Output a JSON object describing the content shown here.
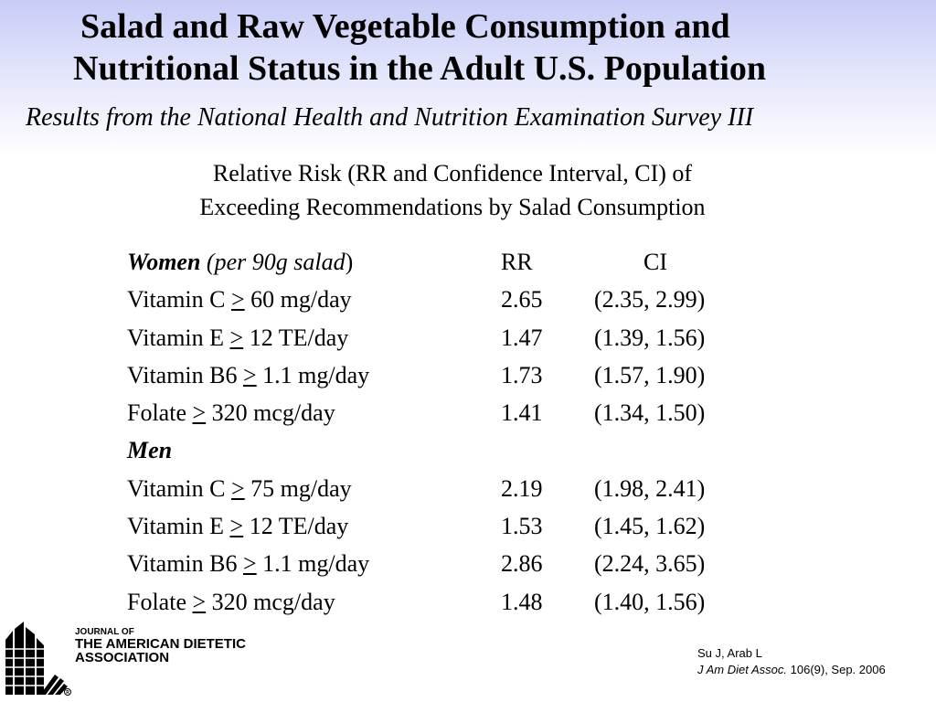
{
  "slide": {
    "title_line1": "Salad and Raw Vegetable Consumption and",
    "title_line2": "Nutritional Status in the Adult U.S. Population",
    "subtitle": "Results from the National Health and Nutrition Examination Survey III",
    "heading_line1": "Relative Risk (RR and Confidence Interval, CI) of",
    "heading_line2": "Exceeding Recommendations by Salad Consumption"
  },
  "table": {
    "women_header": {
      "group": "Women",
      "note": "(per 90g salad",
      "close": ")",
      "rr_header": "RR",
      "ci_header": "CI"
    },
    "women_rows": [
      {
        "name": "Vitamin C ",
        "symbol": ">",
        "threshold": " 60 mg/day",
        "rr": "2.65",
        "ci": "(2.35, 2.99)"
      },
      {
        "name": "Vitamin E ",
        "symbol": ">",
        "threshold": " 12 TE/day",
        "rr": "1.47",
        "ci": "(1.39, 1.56)"
      },
      {
        "name": "Vitamin B6 ",
        "symbol": ">",
        "threshold": " 1.1 mg/day",
        "rr": "1.73",
        "ci": "(1.57, 1.90)"
      },
      {
        "name": "Folate ",
        "symbol": ">",
        "threshold": " 320 mcg/day",
        "rr": "1.41",
        "ci": "(1.34, 1.50)"
      }
    ],
    "men_header": {
      "group": "Men"
    },
    "men_rows": [
      {
        "name": "Vitamin C ",
        "symbol": ">",
        "threshold": " 75 mg/day",
        "rr": "2.19",
        "ci": "(1.98, 2.41)"
      },
      {
        "name": "Vitamin E ",
        "symbol": ">",
        "threshold": " 12 TE/day",
        "rr": "1.53",
        "ci": "(1.45, 1.62)"
      },
      {
        "name": "Vitamin B6 ",
        "symbol": ">",
        "threshold": " 1.1 mg/day",
        "rr": "2.86",
        "ci": "(2.24, 3.65)"
      },
      {
        "name": "Folate ",
        "symbol": ">",
        "threshold": " 320 mcg/day",
        "rr": "1.48",
        "ci": "(1.40, 1.56)"
      }
    ]
  },
  "footer": {
    "logo_icon": "ada-building-logo-icon",
    "journal_line1": "JOURNAL OF",
    "journal_line2": "THE AMERICAN DIETETIC",
    "journal_line3": "ASSOCIATION",
    "citation_authors": "Su J, Arab L",
    "citation_journal": "J Am Diet Assoc.",
    "citation_details": " 106(9), Sep. 2006"
  },
  "colors": {
    "background_top": "#c8ccf6",
    "background_bottom": "#ffffff",
    "text": "#000000"
  }
}
